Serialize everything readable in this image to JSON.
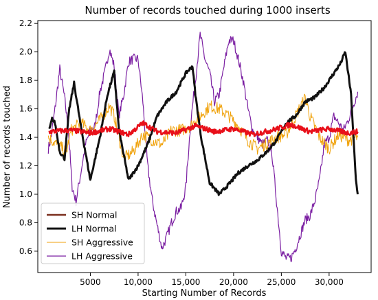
{
  "chart_data": {
    "type": "line",
    "title": "Number of records touched during 1000 inserts",
    "xlabel": "Starting Number of Records",
    "ylabel": "Number of records touched",
    "xlim": [
      -500,
      34400
    ],
    "ylim": [
      0.45,
      2.22
    ],
    "xticks": [
      5000,
      10000,
      15000,
      20000,
      25000,
      30000
    ],
    "xtick_labels": [
      "5000",
      "10,000",
      "15,000",
      "20,000",
      "25,000",
      "30,000"
    ],
    "yticks": [
      0.6,
      0.8,
      1.0,
      1.2,
      1.4,
      1.6,
      1.8,
      2.0,
      2.2
    ],
    "ytick_labels": [
      "0.6",
      "0.8",
      "1.0",
      "1.2",
      "1.4",
      "1.6",
      "1.8",
      "2.0",
      "2.2"
    ],
    "grid": false,
    "legend_position": "lower-left",
    "series": [
      {
        "name": "LH Aggressive",
        "color": "#7b1fa2",
        "line_width": 1.2,
        "noise": 0.035,
        "x": [
          600,
          900,
          1300,
          1800,
          2300,
          2700,
          3100,
          3500,
          4000,
          4500,
          5000,
          5500,
          6000,
          6500,
          7000,
          7500,
          8000,
          8500,
          9000,
          9500,
          10000,
          10500,
          11000,
          11500,
          12000,
          12500,
          13000,
          13500,
          14000,
          14500,
          15000,
          15500,
          16000,
          16500,
          17000,
          17500,
          18000,
          18500,
          19000,
          19500,
          20000,
          20500,
          21000,
          21500,
          22000,
          22500,
          23000,
          23500,
          24000,
          24500,
          25000,
          25500,
          26000,
          26500,
          27000,
          27500,
          28000,
          28500,
          29000,
          29500,
          30000,
          30500,
          31000,
          31500,
          32000,
          32500,
          33000
        ],
        "y": [
          1.32,
          1.4,
          1.6,
          1.88,
          1.68,
          1.45,
          1.05,
          0.95,
          1.15,
          1.35,
          1.45,
          1.48,
          1.72,
          1.85,
          2.02,
          1.9,
          1.55,
          1.7,
          1.93,
          1.95,
          1.95,
          1.65,
          1.2,
          0.95,
          0.78,
          0.62,
          0.7,
          0.8,
          0.88,
          0.9,
          1.05,
          1.5,
          1.8,
          2.12,
          1.95,
          1.85,
          1.65,
          1.7,
          1.9,
          2.08,
          2.08,
          1.95,
          1.8,
          1.6,
          1.45,
          1.4,
          1.35,
          1.38,
          1.3,
          0.95,
          0.6,
          0.55,
          0.55,
          0.62,
          0.72,
          0.82,
          0.85,
          0.95,
          1.1,
          1.35,
          1.4,
          1.55,
          1.5,
          1.45,
          1.52,
          1.62,
          1.72
        ]
      },
      {
        "name": "SH Aggressive",
        "color": "#f0a20b",
        "line_width": 1.0,
        "noise": 0.045,
        "x": [
          600,
          1500,
          2500,
          3000,
          4000,
          5000,
          6000,
          7000,
          7500,
          8500,
          9500,
          10500,
          11500,
          12500,
          13500,
          14500,
          15500,
          16500,
          17500,
          18500,
          19500,
          20500,
          21500,
          22500,
          23500,
          24500,
          25500,
          26500,
          27500,
          28000,
          29000,
          30000,
          31000,
          32000,
          33000
        ],
        "y": [
          1.4,
          1.35,
          1.3,
          1.45,
          1.5,
          1.45,
          1.52,
          1.62,
          1.55,
          1.25,
          1.3,
          1.42,
          1.38,
          1.35,
          1.45,
          1.45,
          1.48,
          1.55,
          1.62,
          1.6,
          1.55,
          1.48,
          1.38,
          1.32,
          1.36,
          1.4,
          1.42,
          1.55,
          1.68,
          1.55,
          1.4,
          1.32,
          1.42,
          1.38,
          1.4
        ]
      },
      {
        "name": "LH Normal",
        "color": "#111111",
        "line_width": 3.0,
        "noise": 0.012,
        "x": [
          700,
          1000,
          1300,
          1800,
          2300,
          2800,
          3300,
          4000,
          5000,
          6000,
          6800,
          7500,
          8000,
          9000,
          10000,
          11000,
          12000,
          13000,
          14000,
          15000,
          15700,
          16000,
          16600,
          17500,
          18500,
          19500,
          20500,
          21500,
          22500,
          23500,
          24500,
          25500,
          26500,
          27500,
          28500,
          29500,
          30500,
          31200,
          31700,
          32300,
          32800,
          33000
        ],
        "y": [
          1.45,
          1.53,
          1.5,
          1.3,
          1.25,
          1.6,
          1.78,
          1.48,
          1.1,
          1.4,
          1.7,
          1.86,
          1.45,
          1.1,
          1.2,
          1.35,
          1.55,
          1.65,
          1.72,
          1.85,
          1.9,
          1.7,
          1.4,
          1.08,
          1.0,
          1.07,
          1.15,
          1.2,
          1.24,
          1.3,
          1.38,
          1.5,
          1.55,
          1.65,
          1.68,
          1.75,
          1.85,
          1.92,
          2.0,
          1.7,
          1.1,
          1.0
        ]
      },
      {
        "name": "SH Normal",
        "color": "#e8101a",
        "legend_color": "#7b2f1e",
        "line_width": 2.6,
        "noise": 0.018,
        "x": [
          700,
          3000,
          5000,
          7000,
          9000,
          10500,
          12000,
          14000,
          16000,
          18000,
          20000,
          22000,
          24000,
          26000,
          28000,
          30000,
          32000,
          33000
        ],
        "y": [
          1.44,
          1.45,
          1.43,
          1.46,
          1.42,
          1.5,
          1.44,
          1.43,
          1.48,
          1.44,
          1.46,
          1.42,
          1.45,
          1.49,
          1.44,
          1.46,
          1.43,
          1.44
        ]
      }
    ],
    "legend_order": [
      "SH Normal",
      "LH Normal",
      "SH Aggressive",
      "LH Aggressive"
    ]
  }
}
